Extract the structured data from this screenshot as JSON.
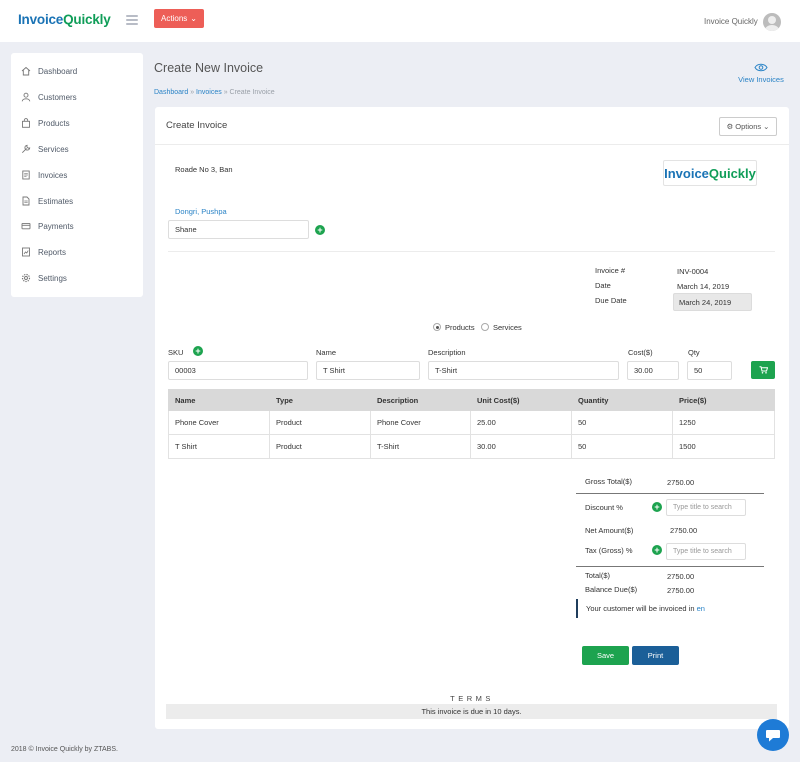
{
  "header": {
    "logo_part1": "Invoice",
    "logo_part2": "Quickly",
    "actions_label": "Actions",
    "user_name": "Invoice Quickly"
  },
  "sidebar": {
    "items": [
      {
        "label": "Dashboard",
        "icon": "home-icon"
      },
      {
        "label": "Customers",
        "icon": "user-icon"
      },
      {
        "label": "Products",
        "icon": "shopping-bag-icon"
      },
      {
        "label": "Services",
        "icon": "wrench-icon"
      },
      {
        "label": "Invoices",
        "icon": "invoice-icon"
      },
      {
        "label": "Estimates",
        "icon": "document-icon"
      },
      {
        "label": "Payments",
        "icon": "credit-card-icon"
      },
      {
        "label": "Reports",
        "icon": "report-icon"
      },
      {
        "label": "Settings",
        "icon": "gear-icon"
      }
    ]
  },
  "page": {
    "title": "Create New Invoice",
    "breadcrumb": [
      "Dashboard",
      "Invoices",
      "Create Invoice"
    ],
    "view_invoices": "View Invoices"
  },
  "card": {
    "title": "Create Invoice",
    "options_label": "Options"
  },
  "invoice": {
    "from_address": "Roade No 3, Ban",
    "brand_part1": "Invoice",
    "brand_part2": "Quickly",
    "customer_address": "Dongri, Pushpa",
    "customer_name": "Shane",
    "number_label": "Invoice #",
    "number": "INV-0004",
    "date_label": "Date",
    "date": "March 14, 2019",
    "due_label": "Due Date",
    "due_date": "March 24, 2019",
    "radio_products": "Products",
    "radio_services": "Services",
    "selected_type": "Products"
  },
  "entry": {
    "sku_label": "SKU",
    "sku": "00003",
    "name_label": "Name",
    "name": "T Shirt",
    "desc_label": "Description",
    "desc": "T-Shirt",
    "cost_label": "Cost($)",
    "cost": "30.00",
    "qty_label": "Qty",
    "qty": "50"
  },
  "table": {
    "headers": [
      "Name",
      "Type",
      "Description",
      "Unit Cost($)",
      "Quantity",
      "Price($)"
    ],
    "rows": [
      [
        "Phone Cover",
        "Product",
        "Phone Cover",
        "25.00",
        "50",
        "1250"
      ],
      [
        "T Shirt",
        "Product",
        "T-Shirt",
        "30.00",
        "50",
        "1500"
      ]
    ]
  },
  "totals": {
    "gross_label": "Gross Total($)",
    "gross": "2750.00",
    "discount_label": "Discount %",
    "discount_placeholder": "Type title to search",
    "net_label": "Net Amount($)",
    "net": "2750.00",
    "tax_label": "Tax (Gross) %",
    "tax_placeholder": "Type title to search",
    "total_label": "Total($)",
    "total": "2750.00",
    "balance_label": "Balance Due($)",
    "balance": "2750.00",
    "note": "Your customer will be invoiced in",
    "note_link": "en"
  },
  "buttons": {
    "save": "Save",
    "print": "Print",
    "save_color": "#1da34f",
    "print_color": "#1b5f98"
  },
  "terms": {
    "heading": "TERMS",
    "text": "This invoice is due in 10 days."
  },
  "footer": "2018 © Invoice Quickly by ZTABS."
}
